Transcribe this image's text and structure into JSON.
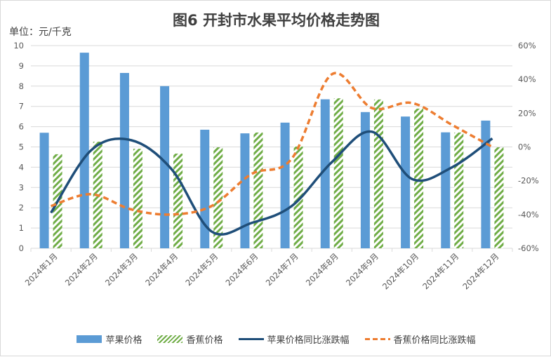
{
  "chart_data": {
    "type": "bar+line",
    "title": "图6  开封市水果平均价格走势图",
    "ylabel": "单位：元/千克",
    "categories": [
      "2024年1月",
      "2024年2月",
      "2024年3月",
      "2024年4月",
      "2024年5月",
      "2024年6月",
      "2024年7月",
      "2024年8月",
      "2024年9月",
      "2024年10月",
      "2024年11月",
      "2024年12月"
    ],
    "y_left": {
      "range": [
        0,
        10
      ],
      "ticks": [
        "0",
        "1",
        "2",
        "3",
        "4",
        "5",
        "6",
        "7",
        "8",
        "9",
        "10"
      ]
    },
    "y_right": {
      "range": [
        -60,
        60
      ],
      "ticks": [
        "-60%",
        "-40%",
        "-20%",
        "0%",
        "20%",
        "40%",
        "60%"
      ]
    },
    "grid": true,
    "legend_position": "bottom",
    "series": [
      {
        "name": "苹果价格",
        "type": "bar",
        "axis": "left",
        "color": "#5b9bd5",
        "values": [
          5.7,
          9.65,
          8.65,
          8.0,
          5.85,
          5.67,
          6.2,
          7.35,
          6.72,
          6.5,
          5.72,
          6.3
        ]
      },
      {
        "name": "香蕉价格",
        "type": "bar-hatched",
        "axis": "left",
        "color": "#70ad47",
        "values": [
          4.64,
          5.26,
          4.91,
          4.67,
          4.98,
          5.71,
          5.02,
          7.4,
          7.34,
          6.89,
          5.71,
          4.98
        ]
      },
      {
        "name": "苹果价格同比涨跌幅",
        "type": "line",
        "axis": "right",
        "color": "#1f4e79",
        "values": [
          -39,
          -2,
          4,
          -13,
          -50,
          -45,
          -35,
          -9,
          9,
          -19,
          -12,
          5
        ]
      },
      {
        "name": "香蕉价格同比涨跌幅",
        "type": "line-dashed",
        "axis": "right",
        "color": "#ed7d31",
        "values": [
          -35,
          -28,
          -37,
          -40,
          -35,
          -16,
          -7,
          43,
          23,
          26,
          13,
          0
        ]
      }
    ]
  }
}
